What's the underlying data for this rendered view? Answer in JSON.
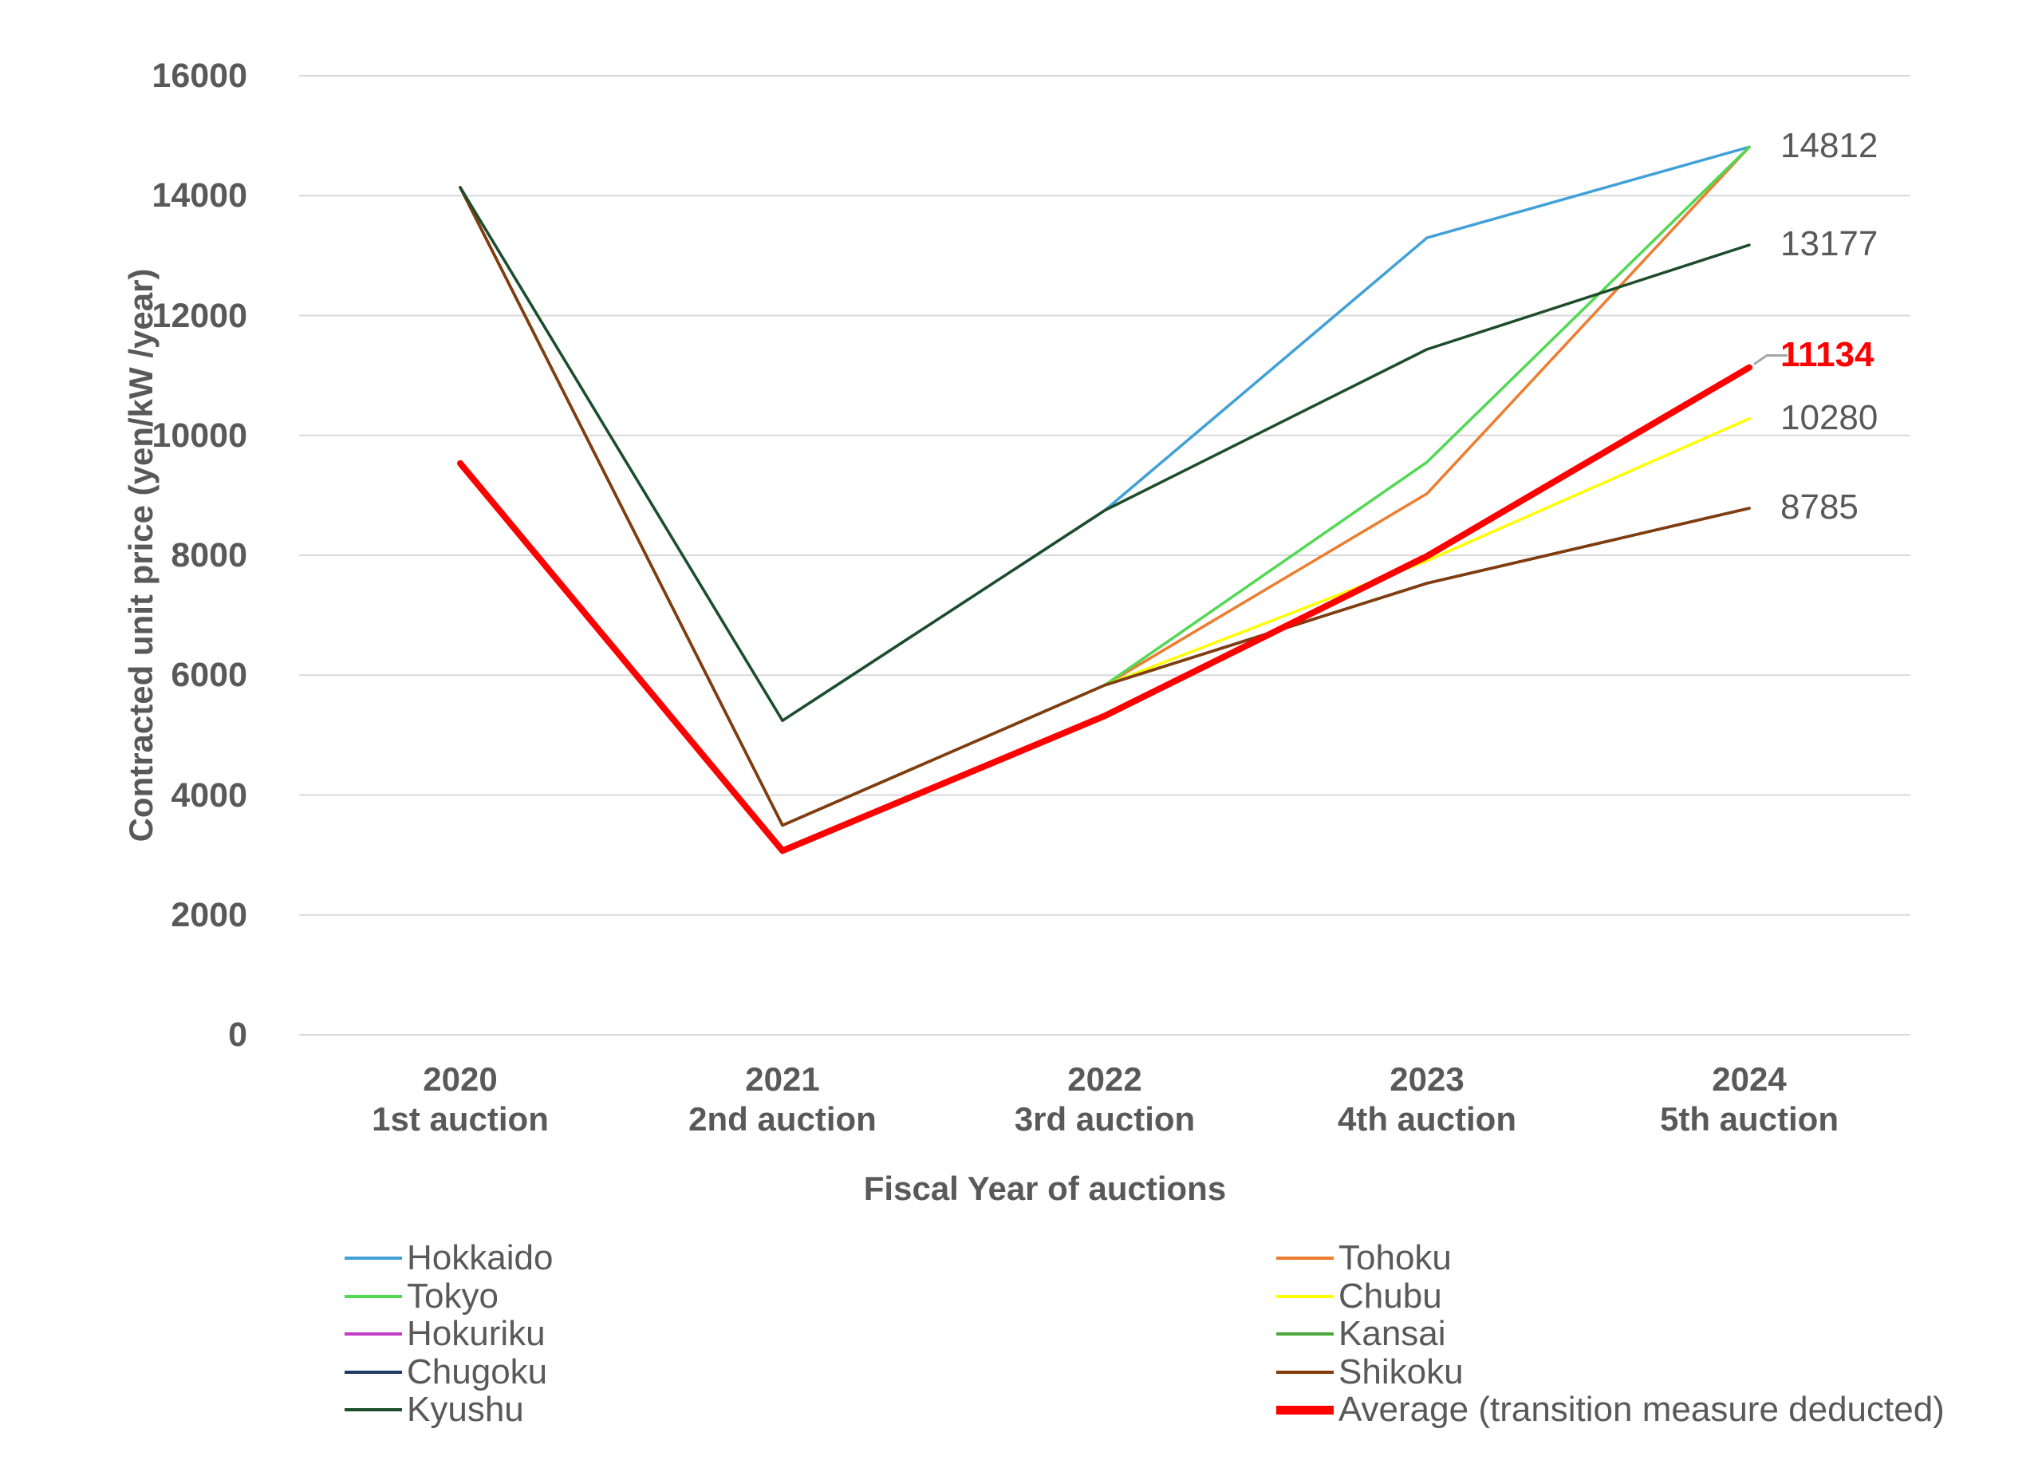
{
  "styles": {
    "background": "#FFFFFF",
    "grid_color": "#D9D9D9",
    "text_color": "#595959",
    "leader_color": "#A6A6A6",
    "accent_red": "#FF0000"
  },
  "chart_data": {
    "type": "line",
    "title": "",
    "xlabel": "Fiscal Year of auctions",
    "ylabel": "Contracted unit price (yen/kW /year)",
    "categories": [
      "2020\n1st auction",
      "2021\n2nd auction",
      "2022\n3rd auction",
      "2023\n4th auction",
      "2024\n5th auction"
    ],
    "ylim": [
      0,
      16000
    ],
    "yticks": [
      0,
      2000,
      4000,
      6000,
      8000,
      10000,
      12000,
      14000,
      16000
    ],
    "grid": "horizontal",
    "legend_position": "bottom",
    "series": [
      {
        "name": "Hokkaido",
        "color": "#41A0D7",
        "width": 3.5,
        "values": [
          14137,
          5242,
          8749,
          13297,
          14812
        ]
      },
      {
        "name": "Tohoku",
        "color": "#ED7D31",
        "width": 3.5,
        "values": [
          14137,
          3495,
          5833,
          9029,
          14812
        ]
      },
      {
        "name": "Tokyo",
        "color": "#52D852",
        "width": 3.5,
        "values": [
          14137,
          3495,
          5833,
          9555,
          14812
        ]
      },
      {
        "name": "Chubu",
        "color": "#FFFF00",
        "width": 3.5,
        "values": [
          14137,
          3495,
          5833,
          7910,
          10280
        ]
      },
      {
        "name": "Hokuriku",
        "color": "#C53CC5",
        "width": 3.5,
        "values": [
          14137,
          3495,
          5833,
          7533,
          8785
        ]
      },
      {
        "name": "Kansai",
        "color": "#4CA83C",
        "width": 3.5,
        "values": [
          14137,
          3495,
          5833,
          7533,
          8785
        ]
      },
      {
        "name": "Chugoku",
        "color": "#1F3864",
        "width": 3.5,
        "values": [
          14137,
          3495,
          5833,
          7533,
          8785
        ]
      },
      {
        "name": "Shikoku",
        "color": "#843C0C",
        "width": 3.5,
        "values": [
          14137,
          3495,
          5833,
          7533,
          8785
        ]
      },
      {
        "name": "Kyushu",
        "color": "#1E4D2B",
        "width": 3.5,
        "values": [
          14137,
          5242,
          8749,
          11436,
          13177
        ]
      },
      {
        "name": "Average (transition measure deducted)",
        "color": "#FF0000",
        "width": 8,
        "values": [
          9534,
          3070,
          5320,
          7986,
          11134
        ]
      }
    ],
    "end_labels": [
      {
        "text": "14812",
        "series": "Hokkaido",
        "color": "#595959",
        "bold": false,
        "leader": false
      },
      {
        "text": "13177",
        "series": "Kyushu",
        "color": "#595959",
        "bold": false,
        "leader": false
      },
      {
        "text": "11134",
        "series": "Average (transition measure deducted)",
        "color": "#FF0000",
        "bold": true,
        "leader": true
      },
      {
        "text": "10280",
        "series": "Chubu",
        "color": "#595959",
        "bold": false,
        "leader": false
      },
      {
        "text": "8785",
        "series": "Shikoku",
        "color": "#595959",
        "bold": false,
        "leader": false
      }
    ],
    "legend": {
      "left": [
        "Hokkaido",
        "Tokyo",
        "Hokuriku",
        "Chugoku",
        "Kyushu"
      ],
      "right": [
        "Tohoku",
        "Chubu",
        "Kansai",
        "Shikoku",
        "Average (transition measure deducted)"
      ]
    }
  }
}
